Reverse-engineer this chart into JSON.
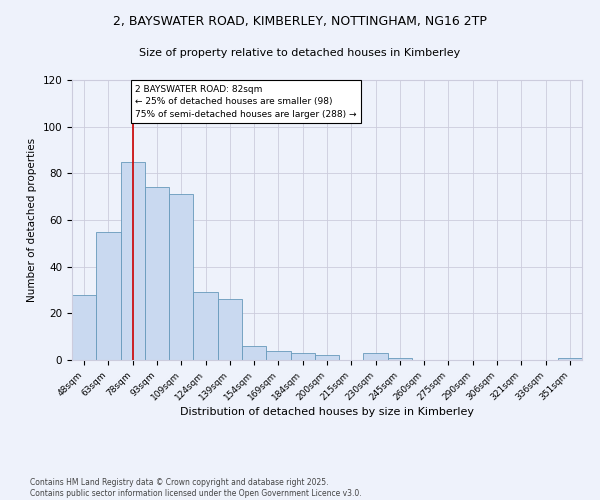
{
  "title": "2, BAYSWATER ROAD, KIMBERLEY, NOTTINGHAM, NG16 2TP",
  "subtitle": "Size of property relative to detached houses in Kimberley",
  "xlabel": "Distribution of detached houses by size in Kimberley",
  "ylabel": "Number of detached properties",
  "categories": [
    "48sqm",
    "63sqm",
    "78sqm",
    "93sqm",
    "109sqm",
    "124sqm",
    "139sqm",
    "154sqm",
    "169sqm",
    "184sqm",
    "200sqm",
    "215sqm",
    "230sqm",
    "245sqm",
    "260sqm",
    "275sqm",
    "290sqm",
    "306sqm",
    "321sqm",
    "336sqm",
    "351sqm"
  ],
  "values": [
    28,
    55,
    85,
    74,
    71,
    29,
    26,
    6,
    4,
    3,
    2,
    0,
    3,
    1,
    0,
    0,
    0,
    0,
    0,
    0,
    1
  ],
  "bar_color": "#c9d9f0",
  "bar_edge_color": "#6699bb",
  "vline_x": 2,
  "vline_color": "#cc0000",
  "annotation_text": "2 BAYSWATER ROAD: 82sqm\n← 25% of detached houses are smaller (98)\n75% of semi-detached houses are larger (288) →",
  "ylim": [
    0,
    120
  ],
  "yticks": [
    0,
    20,
    40,
    60,
    80,
    100,
    120
  ],
  "footer_line1": "Contains HM Land Registry data © Crown copyright and database right 2025.",
  "footer_line2": "Contains public sector information licensed under the Open Government Licence v3.0.",
  "bg_color": "#eef2fb",
  "plot_bg_color": "#eef2fb",
  "grid_color": "#ccccdd"
}
